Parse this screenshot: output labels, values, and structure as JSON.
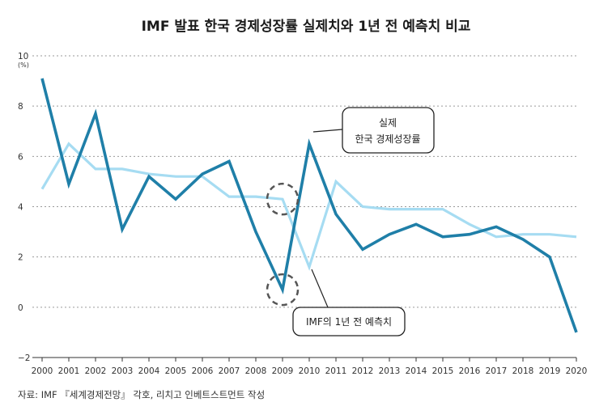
{
  "chart_data": {
    "type": "line",
    "title": "IMF 발표 한국 경제성장률 실제치와 1년 전 예측치 비교",
    "unit": "(%)",
    "ylim": [
      -2,
      10
    ],
    "y_ticks": [
      -2,
      0,
      2,
      4,
      6,
      8,
      10
    ],
    "grid": true,
    "x": [
      "2000",
      "2001",
      "2002",
      "2003",
      "2004",
      "2005",
      "2006",
      "2007",
      "2008",
      "2009",
      "2010",
      "2011",
      "2012",
      "2013",
      "2014",
      "2015",
      "2016",
      "2017",
      "2018",
      "2019",
      "2020"
    ],
    "series": [
      {
        "name": "실제 한국 경제성장률",
        "color": "#1f7fa8",
        "values": [
          9.1,
          4.9,
          7.7,
          3.1,
          5.2,
          4.3,
          5.3,
          5.8,
          3.0,
          0.7,
          6.5,
          3.7,
          2.3,
          2.9,
          3.3,
          2.8,
          2.9,
          3.2,
          2.7,
          2.0,
          -1.0
        ]
      },
      {
        "name": "IMF의 1년 전 예측치",
        "color": "#a6dcf2",
        "values": [
          4.7,
          6.5,
          5.5,
          5.5,
          5.3,
          5.2,
          5.2,
          4.4,
          4.4,
          4.3,
          1.6,
          5.0,
          4.0,
          3.9,
          3.9,
          3.9,
          3.3,
          2.8,
          2.9,
          2.9,
          2.8
        ]
      }
    ],
    "callouts": {
      "actual_line1": "실제",
      "actual_line2": "한국 경제성장률",
      "forecast": "IMF의 1년 전 예측치"
    },
    "source": "자료: IMF 『세계경제전망』 각호, 리치고 인베트스트먼트 작성"
  }
}
